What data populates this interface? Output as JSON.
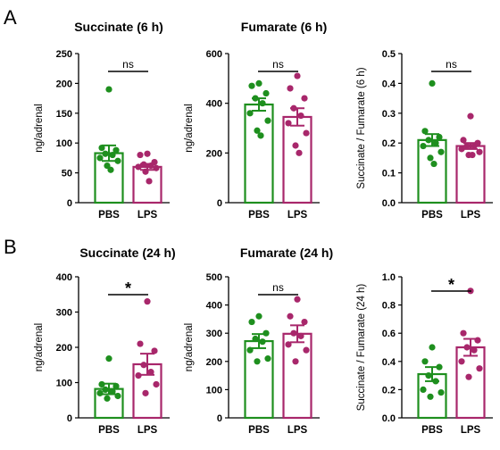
{
  "panels": [
    {
      "letter": "A"
    },
    {
      "letter": "B"
    }
  ],
  "colors": {
    "PBS": "#1e8f1e",
    "LPS": "#a8276b"
  },
  "chart_data": [
    {
      "type": "bar",
      "panel": "A",
      "title": "Succinate (6 h)",
      "ylabel": "ng/adrenal",
      "ylim": [
        0,
        250
      ],
      "yticks": [
        "0",
        "50",
        "100",
        "150",
        "200",
        "250"
      ],
      "categories": [
        "PBS",
        "LPS"
      ],
      "means": [
        83,
        60
      ],
      "sem": [
        13,
        5
      ],
      "points": [
        [
          190,
          92,
          88,
          82,
          80,
          75,
          70,
          62,
          55
        ],
        [
          82,
          80,
          68,
          64,
          62,
          60,
          58,
          52,
          36
        ]
      ],
      "significance": "ns"
    },
    {
      "type": "bar",
      "panel": "A",
      "title": "Fumarate (6 h)",
      "ylabel": "ng/adrenal",
      "ylim": [
        0,
        600
      ],
      "yticks": [
        "0",
        "200",
        "400",
        "600"
      ],
      "categories": [
        "PBS",
        "LPS"
      ],
      "means": [
        395,
        345
      ],
      "sem": [
        25,
        35
      ],
      "points": [
        [
          480,
          470,
          440,
          420,
          400,
          360,
          330,
          290,
          270
        ],
        [
          510,
          460,
          420,
          380,
          350,
          320,
          280,
          230,
          200
        ]
      ],
      "significance": "ns"
    },
    {
      "type": "bar",
      "panel": "A",
      "title": "",
      "ylabel": "Succinate / Fumarate (6 h)",
      "ylim": [
        0,
        0.5
      ],
      "yticks": [
        "0.0",
        "0.1",
        "0.2",
        "0.3",
        "0.4",
        "0.5"
      ],
      "categories": [
        "PBS",
        "LPS"
      ],
      "means": [
        0.21,
        0.19
      ],
      "sem": [
        0.02,
        0.01
      ],
      "points": [
        [
          0.4,
          0.24,
          0.22,
          0.21,
          0.2,
          0.19,
          0.17,
          0.15,
          0.13
        ],
        [
          0.29,
          0.21,
          0.2,
          0.19,
          0.19,
          0.18,
          0.17,
          0.16,
          0.16
        ]
      ],
      "significance": "ns"
    },
    {
      "type": "bar",
      "panel": "B",
      "title": "Succinate (24 h)",
      "ylabel": "ng/adrenal",
      "ylim": [
        0,
        400
      ],
      "yticks": [
        "0",
        "100",
        "200",
        "300",
        "400"
      ],
      "categories": [
        "PBS",
        "LPS"
      ],
      "means": [
        82,
        152
      ],
      "sem": [
        15,
        30
      ],
      "points": [
        [
          168,
          95,
          90,
          80,
          75,
          70,
          62,
          55
        ],
        [
          330,
          210,
          190,
          150,
          130,
          120,
          95,
          70
        ]
      ],
      "significance": "*"
    },
    {
      "type": "bar",
      "panel": "B",
      "title": "Fumarate (24 h)",
      "ylabel": "ng/adrenal",
      "ylim": [
        0,
        500
      ],
      "yticks": [
        "0",
        "100",
        "200",
        "300",
        "400",
        "500"
      ],
      "categories": [
        "PBS",
        "LPS"
      ],
      "means": [
        272,
        298
      ],
      "sem": [
        25,
        30
      ],
      "points": [
        [
          360,
          340,
          300,
          280,
          270,
          240,
          210,
          200
        ],
        [
          420,
          360,
          340,
          300,
          290,
          260,
          240,
          200
        ]
      ],
      "significance": "ns"
    },
    {
      "type": "bar",
      "panel": "B",
      "title": "",
      "ylabel": "Succinate / Fumarate (24 h)",
      "ylim": [
        0,
        1.0
      ],
      "yticks": [
        "0.0",
        "0.2",
        "0.4",
        "0.6",
        "0.8",
        "1.0"
      ],
      "categories": [
        "PBS",
        "LPS"
      ],
      "means": [
        0.31,
        0.5
      ],
      "sem": [
        0.05,
        0.06
      ],
      "points": [
        [
          0.5,
          0.4,
          0.36,
          0.3,
          0.26,
          0.2,
          0.18,
          0.15
        ],
        [
          0.9,
          0.6,
          0.55,
          0.5,
          0.48,
          0.4,
          0.35,
          0.29
        ]
      ],
      "significance": "*"
    }
  ]
}
